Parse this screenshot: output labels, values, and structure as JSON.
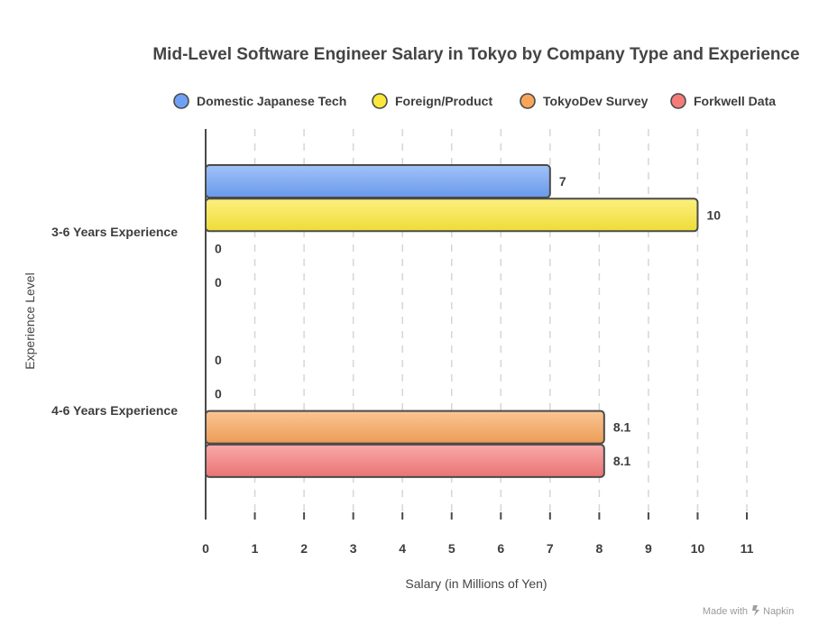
{
  "chart_data": {
    "type": "bar",
    "orientation": "horizontal",
    "title": "Mid-Level Software Engineer Salary in Tokyo by Company Type and Experience",
    "xlabel": "Salary (in Millions of Yen)",
    "ylabel": "Experience Level",
    "xlim": [
      0,
      11
    ],
    "xticks": [
      "0",
      "1",
      "2",
      "3",
      "4",
      "5",
      "6",
      "7",
      "8",
      "9",
      "10",
      "11"
    ],
    "grid": "vertical-dashed",
    "legend_position": "top",
    "categories": [
      "3-6 Years Experience",
      "4-6 Years Experience"
    ],
    "series": [
      {
        "name": "Domestic Japanese Tech",
        "values": [
          7,
          0
        ],
        "labels": [
          "7",
          "0"
        ],
        "color": "#6ea1f5"
      },
      {
        "name": "Foreign/Product",
        "values": [
          10,
          0
        ],
        "labels": [
          "10",
          "0"
        ],
        "color": "#fbe83a"
      },
      {
        "name": "TokyoDev Survey",
        "values": [
          0,
          8.1
        ],
        "labels": [
          "0",
          "8.1"
        ],
        "color": "#f8a55a"
      },
      {
        "name": "Forkwell Data",
        "values": [
          0,
          8.1
        ],
        "labels": [
          "0",
          "8.1"
        ],
        "color": "#f57a7a"
      }
    ]
  },
  "watermark": {
    "prefix": "Made with",
    "brand": "Napkin"
  }
}
